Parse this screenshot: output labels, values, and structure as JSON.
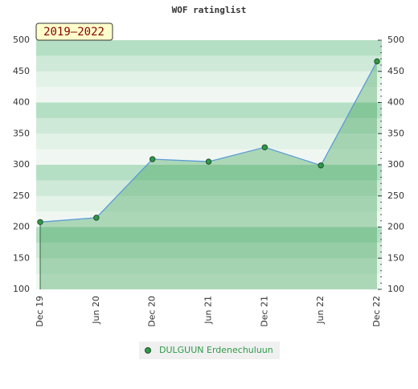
{
  "chart_data": {
    "type": "area",
    "title": "WOF ratinglist",
    "badge": "2019–2022",
    "categories": [
      "Dec 19",
      "Jun 20",
      "Dec 20",
      "Jun 21",
      "Dec 21",
      "Jun 22",
      "Dec 22"
    ],
    "series": [
      {
        "name": "DULGUUN Erdenechuluun",
        "color": "#2e9a4a",
        "values": [
          208,
          215,
          309,
          305,
          328,
          299,
          466
        ]
      }
    ],
    "ylim": [
      100,
      500
    ],
    "yticks": [
      100,
      150,
      200,
      250,
      300,
      350,
      400,
      450,
      500
    ]
  }
}
